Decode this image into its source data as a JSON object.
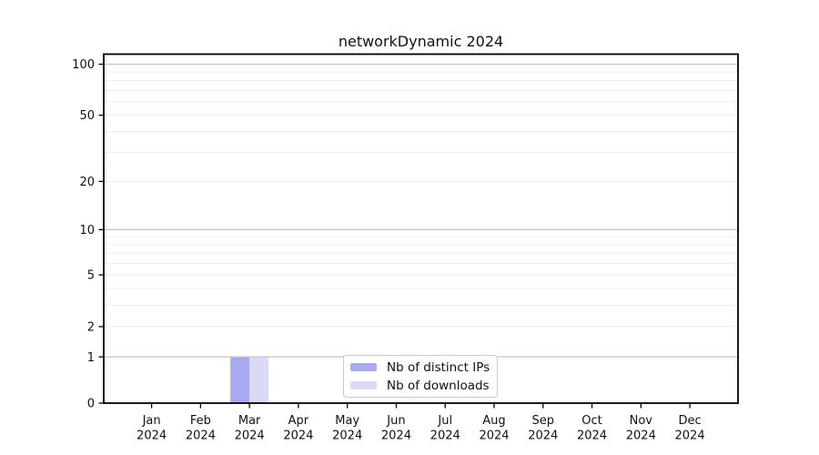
{
  "chart_data": {
    "type": "bar",
    "title": "networkDynamic 2024",
    "categories": [
      "Jan",
      "Feb",
      "Mar",
      "Apr",
      "May",
      "Jun",
      "Jul",
      "Aug",
      "Sep",
      "Oct",
      "Nov",
      "Dec"
    ],
    "x_year": "2024",
    "series": [
      {
        "name": "Nb of distinct IPs",
        "color": "#a9a9f2",
        "values": [
          0,
          0,
          1,
          0,
          0,
          0,
          0,
          0,
          0,
          0,
          0,
          0
        ]
      },
      {
        "name": "Nb of downloads",
        "color": "#dadaf8",
        "values": [
          0,
          0,
          1,
          0,
          0,
          0,
          0,
          0,
          0,
          0,
          0,
          0
        ]
      }
    ],
    "y_axis": {
      "scale": "log1p",
      "range": [
        0,
        100
      ],
      "tick_values": [
        0,
        1,
        2,
        5,
        10,
        20,
        50,
        100
      ],
      "tick_labels": [
        "0",
        "1",
        "2",
        "5",
        "10",
        "20",
        "50",
        "100"
      ],
      "gridline_values": [
        1,
        2,
        3,
        4,
        5,
        6,
        7,
        8,
        9,
        10,
        20,
        30,
        40,
        50,
        60,
        70,
        80,
        90,
        100
      ],
      "major_gridlines": [
        1,
        10,
        100
      ]
    },
    "legend": {
      "position": "bottom-center"
    },
    "grid": true,
    "colors": {
      "frame": "#000000",
      "major_grid": "#c3c3c3",
      "minor_grid": "#ededed",
      "text": "#111111"
    }
  }
}
